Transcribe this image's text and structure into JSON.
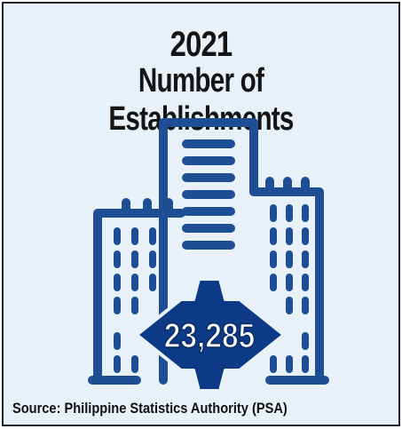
{
  "infographic": {
    "year": "2021",
    "title": "Number of Establishments",
    "value": "23,285",
    "source": "Source: Philippine Statistics Authority (PSA)",
    "icon": "buildings-icon"
  },
  "colors": {
    "background": "#e8f1f8",
    "building_stroke": "#1e4f94",
    "badge_fill": "#0d3a86",
    "badge_text": "#ffffff",
    "text": "#151515"
  }
}
